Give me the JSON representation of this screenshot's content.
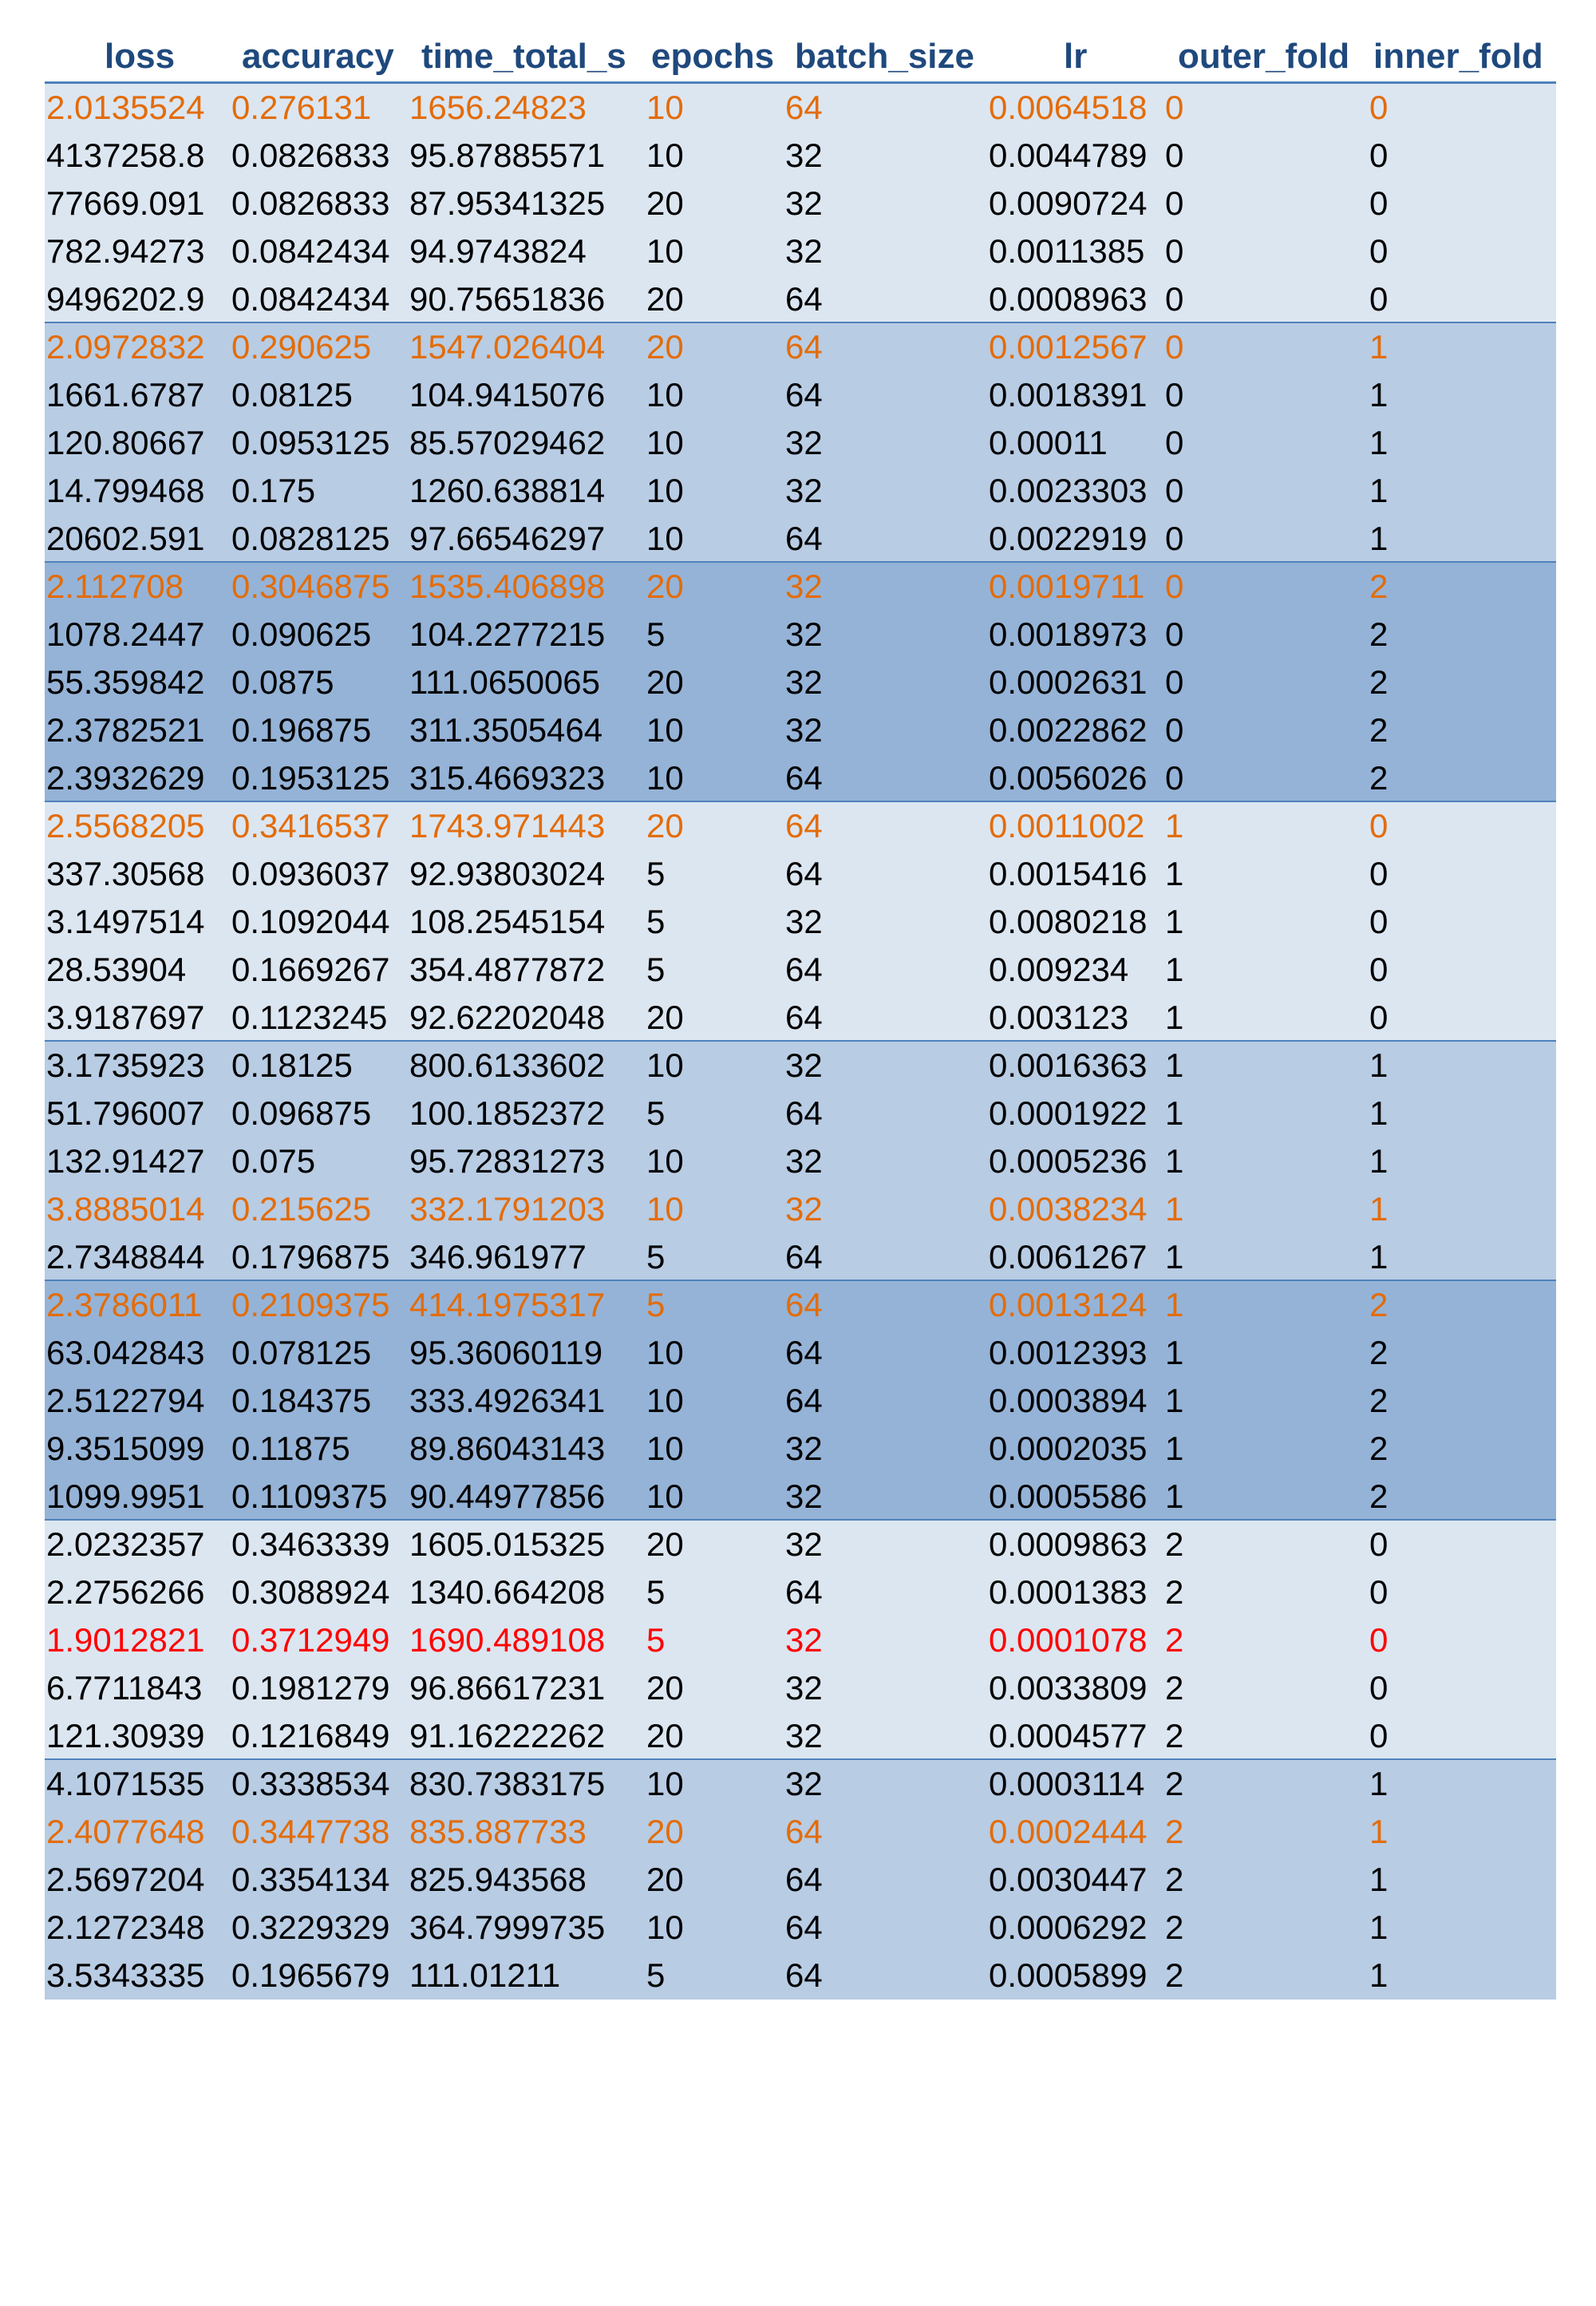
{
  "columns": [
    "loss",
    "accuracy",
    "time_total_s",
    "epochs",
    "batch_size",
    "lr",
    "outer_fold",
    "inner_fold"
  ],
  "colors": {
    "header_text": "#1f497d",
    "band_light": "#dce6f1",
    "band_mid": "#b8cce4",
    "band_dark": "#95b3d7",
    "highlight_orange": "#e36c09",
    "highlight_red": "#ff0000"
  },
  "rows": [
    {
      "band": "light",
      "color": "orange",
      "cells": [
        "2.0135524",
        "0.276131",
        "1656.24823",
        "10",
        "64",
        "0.0064518",
        "0",
        "0"
      ]
    },
    {
      "band": "light",
      "color": "normal",
      "cells": [
        "4137258.8",
        "0.0826833",
        "95.87885571",
        "10",
        "32",
        "0.0044789",
        "0",
        "0"
      ]
    },
    {
      "band": "light",
      "color": "normal",
      "cells": [
        "77669.091",
        "0.0826833",
        "87.95341325",
        "20",
        "32",
        "0.0090724",
        "0",
        "0"
      ]
    },
    {
      "band": "light",
      "color": "normal",
      "cells": [
        "782.94273",
        "0.0842434",
        "94.9743824",
        "10",
        "32",
        "0.0011385",
        "0",
        "0"
      ]
    },
    {
      "band": "light",
      "color": "normal",
      "cells": [
        "9496202.9",
        "0.0842434",
        "90.75651836",
        "20",
        "64",
        "0.0008963",
        "0",
        "0"
      ]
    },
    {
      "band": "mid",
      "color": "orange",
      "cells": [
        "2.0972832",
        "0.290625",
        "1547.026404",
        "20",
        "64",
        "0.0012567",
        "0",
        "1"
      ]
    },
    {
      "band": "mid",
      "color": "normal",
      "cells": [
        "1661.6787",
        "0.08125",
        "104.9415076",
        "10",
        "64",
        "0.0018391",
        "0",
        "1"
      ]
    },
    {
      "band": "mid",
      "color": "normal",
      "cells": [
        "120.80667",
        "0.0953125",
        "85.57029462",
        "10",
        "32",
        "0.00011",
        "0",
        "1"
      ]
    },
    {
      "band": "mid",
      "color": "normal",
      "cells": [
        "14.799468",
        "0.175",
        "1260.638814",
        "10",
        "32",
        "0.0023303",
        "0",
        "1"
      ]
    },
    {
      "band": "mid",
      "color": "normal",
      "cells": [
        "20602.591",
        "0.0828125",
        "97.66546297",
        "10",
        "64",
        "0.0022919",
        "0",
        "1"
      ]
    },
    {
      "band": "dark",
      "color": "orange",
      "cells": [
        "2.112708",
        "0.3046875",
        "1535.406898",
        "20",
        "32",
        "0.0019711",
        "0",
        "2"
      ]
    },
    {
      "band": "dark",
      "color": "normal",
      "cells": [
        "1078.2447",
        "0.090625",
        "104.2277215",
        "5",
        "32",
        "0.0018973",
        "0",
        "2"
      ]
    },
    {
      "band": "dark",
      "color": "normal",
      "cells": [
        "55.359842",
        "0.0875",
        "111.0650065",
        "20",
        "32",
        "0.0002631",
        "0",
        "2"
      ]
    },
    {
      "band": "dark",
      "color": "normal",
      "cells": [
        "2.3782521",
        "0.196875",
        "311.3505464",
        "10",
        "32",
        "0.0022862",
        "0",
        "2"
      ]
    },
    {
      "band": "dark",
      "color": "normal",
      "cells": [
        "2.3932629",
        "0.1953125",
        "315.4669323",
        "10",
        "64",
        "0.0056026",
        "0",
        "2"
      ]
    },
    {
      "band": "light",
      "color": "orange",
      "cells": [
        "2.5568205",
        "0.3416537",
        "1743.971443",
        "20",
        "64",
        "0.0011002",
        "1",
        "0"
      ]
    },
    {
      "band": "light",
      "color": "normal",
      "cells": [
        "337.30568",
        "0.0936037",
        "92.93803024",
        "5",
        "64",
        "0.0015416",
        "1",
        "0"
      ]
    },
    {
      "band": "light",
      "color": "normal",
      "cells": [
        "3.1497514",
        "0.1092044",
        "108.2545154",
        "5",
        "32",
        "0.0080218",
        "1",
        "0"
      ]
    },
    {
      "band": "light",
      "color": "normal",
      "cells": [
        "28.53904",
        "0.1669267",
        "354.4877872",
        "5",
        "64",
        "0.009234",
        "1",
        "0"
      ]
    },
    {
      "band": "light",
      "color": "normal",
      "cells": [
        "3.9187697",
        "0.1123245",
        "92.62202048",
        "20",
        "64",
        "0.003123",
        "1",
        "0"
      ]
    },
    {
      "band": "mid",
      "color": "normal",
      "cells": [
        "3.1735923",
        "0.18125",
        "800.6133602",
        "10",
        "32",
        "0.0016363",
        "1",
        "1"
      ]
    },
    {
      "band": "mid",
      "color": "normal",
      "cells": [
        "51.796007",
        "0.096875",
        "100.1852372",
        "5",
        "64",
        "0.0001922",
        "1",
        "1"
      ]
    },
    {
      "band": "mid",
      "color": "normal",
      "cells": [
        "132.91427",
        "0.075",
        "95.72831273",
        "10",
        "32",
        "0.0005236",
        "1",
        "1"
      ]
    },
    {
      "band": "mid",
      "color": "orange",
      "cells": [
        "3.8885014",
        "0.215625",
        "332.1791203",
        "10",
        "32",
        "0.0038234",
        "1",
        "1"
      ]
    },
    {
      "band": "mid",
      "color": "normal",
      "cells": [
        "2.7348844",
        "0.1796875",
        "346.961977",
        "5",
        "64",
        "0.0061267",
        "1",
        "1"
      ]
    },
    {
      "band": "dark",
      "color": "orange",
      "cells": [
        "2.3786011",
        "0.2109375",
        "414.1975317",
        "5",
        "64",
        "0.0013124",
        "1",
        "2"
      ]
    },
    {
      "band": "dark",
      "color": "normal",
      "cells": [
        "63.042843",
        "0.078125",
        "95.36060119",
        "10",
        "64",
        "0.0012393",
        "1",
        "2"
      ]
    },
    {
      "band": "dark",
      "color": "normal",
      "cells": [
        "2.5122794",
        "0.184375",
        "333.4926341",
        "10",
        "64",
        "0.0003894",
        "1",
        "2"
      ]
    },
    {
      "band": "dark",
      "color": "normal",
      "cells": [
        "9.3515099",
        "0.11875",
        "89.86043143",
        "10",
        "32",
        "0.0002035",
        "1",
        "2"
      ]
    },
    {
      "band": "dark",
      "color": "normal",
      "cells": [
        "1099.9951",
        "0.1109375",
        "90.44977856",
        "10",
        "32",
        "0.0005586",
        "1",
        "2"
      ]
    },
    {
      "band": "light",
      "color": "normal",
      "cells": [
        "2.0232357",
        "0.3463339",
        "1605.015325",
        "20",
        "32",
        "0.0009863",
        "2",
        "0"
      ]
    },
    {
      "band": "light",
      "color": "normal",
      "cells": [
        "2.2756266",
        "0.3088924",
        "1340.664208",
        "5",
        "64",
        "0.0001383",
        "2",
        "0"
      ]
    },
    {
      "band": "light",
      "color": "red",
      "cells": [
        "1.9012821",
        "0.3712949",
        "1690.489108",
        "5",
        "32",
        "0.0001078",
        "2",
        "0"
      ]
    },
    {
      "band": "light",
      "color": "normal",
      "cells": [
        "6.7711843",
        "0.1981279",
        "96.86617231",
        "20",
        "32",
        "0.0033809",
        "2",
        "0"
      ]
    },
    {
      "band": "light",
      "color": "normal",
      "cells": [
        "121.30939",
        "0.1216849",
        "91.16222262",
        "20",
        "32",
        "0.0004577",
        "2",
        "0"
      ]
    },
    {
      "band": "mid",
      "color": "normal",
      "cells": [
        "4.1071535",
        "0.3338534",
        "830.7383175",
        "10",
        "32",
        "0.0003114",
        "2",
        "1"
      ]
    },
    {
      "band": "mid",
      "color": "orange",
      "cells": [
        "2.4077648",
        "0.3447738",
        "835.887733",
        "20",
        "64",
        "0.0002444",
        "2",
        "1"
      ]
    },
    {
      "band": "mid",
      "color": "normal",
      "cells": [
        "2.5697204",
        "0.3354134",
        "825.943568",
        "20",
        "64",
        "0.0030447",
        "2",
        "1"
      ]
    },
    {
      "band": "mid",
      "color": "normal",
      "cells": [
        "2.1272348",
        "0.3229329",
        "364.7999735",
        "10",
        "64",
        "0.0006292",
        "2",
        "1"
      ]
    },
    {
      "band": "mid",
      "color": "normal",
      "cells": [
        "3.5343335",
        "0.1965679",
        "111.01211",
        "5",
        "64",
        "0.0005899",
        "2",
        "1"
      ]
    }
  ]
}
